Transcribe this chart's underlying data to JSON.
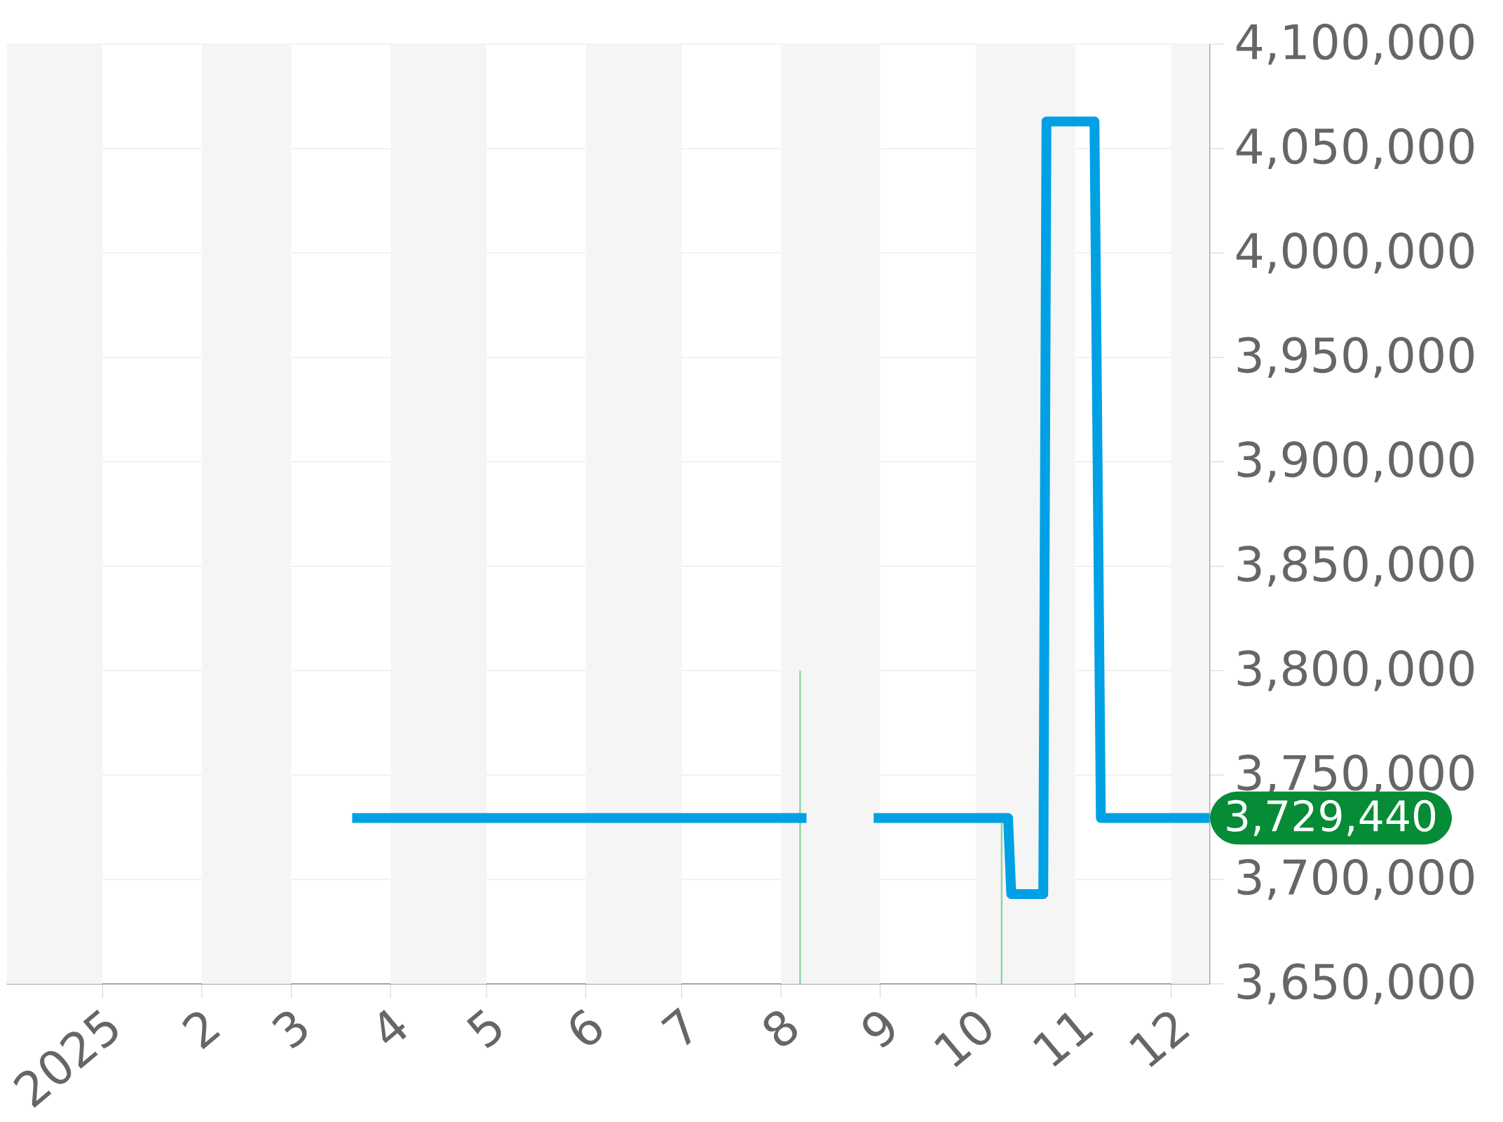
{
  "chart_data": {
    "type": "line",
    "xlim": [
      "2024-12-02",
      "2025-12-13"
    ],
    "xticks": [
      {
        "value": "2025-01-01",
        "label": "2025"
      },
      {
        "value": "2025-02-01",
        "label": "2"
      },
      {
        "value": "2025-03-01",
        "label": "3"
      },
      {
        "value": "2025-04-01",
        "label": "4"
      },
      {
        "value": "2025-05-01",
        "label": "5"
      },
      {
        "value": "2025-06-01",
        "label": "6"
      },
      {
        "value": "2025-07-01",
        "label": "7"
      },
      {
        "value": "2025-08-01",
        "label": "8"
      },
      {
        "value": "2025-09-01",
        "label": "9"
      },
      {
        "value": "2025-10-01",
        "label": "10"
      },
      {
        "value": "2025-11-01",
        "label": "11"
      },
      {
        "value": "2025-12-01",
        "label": "12"
      }
    ],
    "ylim": [
      3650000,
      4100000
    ],
    "yticks": [
      {
        "value": 3650000,
        "label": "3,650,000"
      },
      {
        "value": 3700000,
        "label": "3,700,000"
      },
      {
        "value": 3750000,
        "label": "3,750,000"
      },
      {
        "value": 3800000,
        "label": "3,800,000"
      },
      {
        "value": 3850000,
        "label": "3,850,000"
      },
      {
        "value": 3900000,
        "label": "3,900,000"
      },
      {
        "value": 3950000,
        "label": "3,950,000"
      },
      {
        "value": 4000000,
        "label": "4,000,000"
      },
      {
        "value": 4050000,
        "label": "4,050,000"
      },
      {
        "value": 4100000,
        "label": "4,100,000"
      }
    ],
    "grid": "y",
    "marker": "none",
    "line_style": "solid",
    "bands": [
      {
        "axis": "x",
        "from": "2024-12-02",
        "to": "2025-01-01",
        "color": "#f5f5f5"
      },
      {
        "axis": "x",
        "from": "2025-02-01",
        "to": "2025-03-01",
        "color": "#f5f5f5"
      },
      {
        "axis": "x",
        "from": "2025-04-01",
        "to": "2025-05-01",
        "color": "#f5f5f5"
      },
      {
        "axis": "x",
        "from": "2025-06-01",
        "to": "2025-07-01",
        "color": "#f5f5f5"
      },
      {
        "axis": "x",
        "from": "2025-08-01",
        "to": "2025-09-01",
        "color": "#f5f5f5"
      },
      {
        "axis": "x",
        "from": "2025-10-01",
        "to": "2025-11-01",
        "color": "#f5f5f5"
      },
      {
        "axis": "x",
        "from": "2025-12-01",
        "to": "2025-12-13",
        "color": "#f5f5f5"
      }
    ],
    "series": [
      {
        "type": "bar",
        "color": "#8fd4a0",
        "x": [
          "2025-08-07",
          "2025-10-09"
        ],
        "values": [
          3800000,
          3727000
        ]
      },
      {
        "color": "#00a0e4",
        "x": [
          "2025-03-20",
          "2025-08-09",
          "2025-08-20",
          "2025-08-30",
          "2025-10-11",
          "2025-10-12",
          "2025-10-22",
          "2025-10-23",
          "2025-11-07",
          "2025-11-09",
          "2025-12-13"
        ],
        "values": [
          3729440,
          3729440,
          null,
          3729440,
          3729440,
          3693000,
          3693000,
          4063000,
          4063000,
          3729440,
          3729440
        ]
      }
    ],
    "annotations": [
      {
        "text": "3,729,440",
        "x": "2025-12-13",
        "y": 3729440
      }
    ]
  }
}
